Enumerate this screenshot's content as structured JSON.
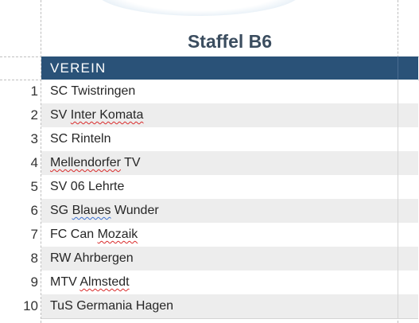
{
  "sheet": {
    "title": "Staffel B6",
    "column_header": "VEREIN",
    "rows": [
      {
        "num": "1",
        "club_parts": [
          {
            "t": "SC Twistringen",
            "mark": ""
          }
        ]
      },
      {
        "num": "2",
        "club_parts": [
          {
            "t": "SV ",
            "mark": ""
          },
          {
            "t": "Inter Komata",
            "mark": "red"
          }
        ]
      },
      {
        "num": "3",
        "club_parts": [
          {
            "t": "SC Rinteln",
            "mark": ""
          }
        ]
      },
      {
        "num": "4",
        "club_parts": [
          {
            "t": "Mellendorfer",
            "mark": "red"
          },
          {
            "t": " TV",
            "mark": ""
          }
        ]
      },
      {
        "num": "5",
        "club_parts": [
          {
            "t": "SV 06 Lehrte",
            "mark": ""
          }
        ]
      },
      {
        "num": "6",
        "club_parts": [
          {
            "t": "SG ",
            "mark": ""
          },
          {
            "t": "Blaues",
            "mark": "blue"
          },
          {
            "t": " Wunder",
            "mark": ""
          }
        ]
      },
      {
        "num": "7",
        "club_parts": [
          {
            "t": "FC Can ",
            "mark": ""
          },
          {
            "t": "Mozaik",
            "mark": "red"
          }
        ]
      },
      {
        "num": "8",
        "club_parts": [
          {
            "t": "RW Ahrbergen",
            "mark": ""
          }
        ]
      },
      {
        "num": "9",
        "club_parts": [
          {
            "t": "MTV ",
            "mark": ""
          },
          {
            "t": "Almstedt",
            "mark": "red"
          }
        ]
      },
      {
        "num": "10",
        "club_parts": [
          {
            "t": "TuS Germania Hagen",
            "mark": ""
          }
        ]
      }
    ]
  },
  "colors": {
    "header_bg": "#2a5278",
    "title_text": "#3b4d5f",
    "row_alt_bg": "#ededed",
    "spell_error": "#d92b2b",
    "grammar_mark": "#3a6fd0"
  }
}
